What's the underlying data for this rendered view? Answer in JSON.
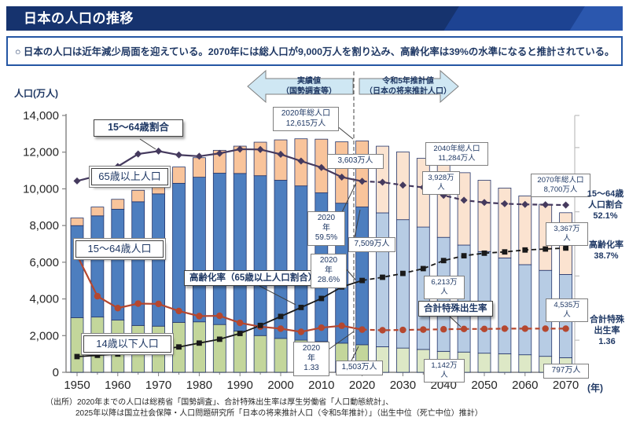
{
  "title_bar": {
    "title": "日本の人口の推移"
  },
  "note": {
    "text": "○ 日本の人口は近年減少局面を迎えている。2070年には総人口が9,000万人を割り込み、高齢化率は39%の水準になると推計されている。"
  },
  "chart_data": {
    "type": "bar",
    "subtype": "stacked-bars-with-lines",
    "ylabel": "人口(万人)",
    "xunit": "(年)",
    "ylim": [
      0,
      14000
    ],
    "ytick_step": 2000,
    "ytick_labels": [
      "0",
      "2,000",
      "4,000",
      "6,000",
      "8,000",
      "10,000",
      "12,000",
      "14,000"
    ],
    "xtick_labels": [
      "1950",
      "1960",
      "1970",
      "1980",
      "1990",
      "2000",
      "2010",
      "2020",
      "2030",
      "2040",
      "2050",
      "2060",
      "2070"
    ],
    "grid": false,
    "legend_position": "in-plot label boxes",
    "projection_from_year": 2025,
    "years": [
      1950,
      1955,
      1960,
      1965,
      1970,
      1975,
      1980,
      1985,
      1990,
      1995,
      2000,
      2005,
      2010,
      2015,
      2020,
      2025,
      2030,
      2035,
      2040,
      2045,
      2050,
      2055,
      2060,
      2065,
      2070
    ],
    "series": [
      {
        "name": "14歳以下人口",
        "role": "bar",
        "unit": "万人",
        "values": [
          2979,
          3012,
          2843,
          2553,
          2515,
          2722,
          2751,
          2603,
          2249,
          2001,
          1847,
          1752,
          1680,
          1589,
          1503,
          1393,
          1321,
          1246,
          1142,
          1103,
          1041,
          1012,
          955,
          870,
          797
        ]
      },
      {
        "name": "15～64歳人口",
        "role": "bar",
        "unit": "万人",
        "values": [
          5017,
          5517,
          6047,
          6744,
          7212,
          7581,
          7883,
          8251,
          8590,
          8716,
          8622,
          8409,
          8103,
          7629,
          7509,
          7298,
          6998,
          6671,
          6213,
          5832,
          5540,
          5219,
          4912,
          4686,
          4535
        ]
      },
      {
        "name": "65歳以上人口",
        "role": "bar",
        "unit": "万人",
        "values": [
          416,
          479,
          540,
          624,
          739,
          887,
          1065,
          1247,
          1489,
          1826,
          2201,
          2567,
          2925,
          3347,
          3603,
          3635,
          3696,
          3747,
          3928,
          3945,
          3888,
          3813,
          3748,
          3603,
          3367
        ]
      },
      {
        "name": "15～64歳割合",
        "role": "line",
        "unit": "%",
        "values": [
          59.6,
          61.2,
          64.1,
          68.0,
          68.9,
          67.7,
          67.3,
          68.2,
          69.5,
          69.4,
          67.9,
          65.8,
          63.8,
          60.8,
          59.5,
          59.2,
          58.3,
          57.6,
          55.1,
          53.6,
          52.9,
          52.5,
          52.3,
          52.2,
          52.1
        ]
      },
      {
        "name": "高齢化率（65歳以上人口割合）",
        "role": "line",
        "unit": "%",
        "values": [
          4.9,
          5.3,
          5.7,
          6.3,
          7.1,
          7.9,
          9.1,
          10.3,
          12.1,
          14.6,
          17.4,
          20.2,
          23.0,
          26.6,
          28.6,
          29.6,
          30.8,
          32.3,
          34.8,
          36.3,
          37.1,
          37.5,
          38.1,
          38.4,
          38.7
        ]
      },
      {
        "name": "合計特殊出生率",
        "role": "line",
        "unit": "",
        "values": [
          3.65,
          2.37,
          2.0,
          2.14,
          2.13,
          1.91,
          1.75,
          1.76,
          1.54,
          1.42,
          1.36,
          1.26,
          1.39,
          1.45,
          1.33,
          1.31,
          1.32,
          1.33,
          1.34,
          1.35,
          1.35,
          1.36,
          1.36,
          1.36,
          1.36
        ]
      }
    ],
    "colors": {
      "bar_child_actual": "#c3d69b",
      "bar_working_actual": "#4d7ebf",
      "bar_elderly_actual": "#f9c49b",
      "bar_child_proj": "#dde8c6",
      "bar_working_proj": "#b7cce4",
      "bar_elderly_proj": "#fbe3d0",
      "bar_outline": "#24356b",
      "line_share": "#453a5e",
      "line_aging": "#1a1a1a",
      "line_tfr": "#b5472f",
      "arrow_fill": "#cfe7f3",
      "axis": "#808080"
    },
    "annotations": {
      "arrow_actual": "実績値\n（国勢調査等）",
      "arrow_proj": "令和5年推計値\n（日本の将来推計人口）",
      "share_label": "15～64歳割合",
      "elderly_label": "65歳以上人口",
      "working_label": "15～64歳人口",
      "child_label": "14歳以下人口",
      "aging_label": "高齢化率（65歳以上人口割合）",
      "tfr_label": "合計特殊出生率",
      "total_2020": "2020年総人口\n12,615万人",
      "total_2040": "2040年総人口\n11,284万人",
      "total_2070": "2070年総人口\n8,700万人",
      "elderly_2020": "3,603万人",
      "elderly_2040": "3,928万\n人",
      "elderly_2070": "3,367万\n人",
      "working_2020": "7,509万人",
      "working_2040": "6,213万\n人",
      "working_2070": "4,535万\n人",
      "child_2020": "1,503万人",
      "child_2040": "1,142万\n人",
      "child_2070": "797万人",
      "share_2020": "2020\n年\n59.5%",
      "aging_2020": "2020\n年\n28.6%",
      "tfr_2020": "2020\n年\n1.33",
      "right_share": "15～64歳\n人口割合\n52.1%",
      "right_aging": "高齢化率\n38.7%",
      "right_tfr": "合計特殊\n出生率\n1.36"
    }
  },
  "source": {
    "line1": "（出所）2020年までの人口は総務省「国勢調査」、合計特殊出生率は厚生労働省「人口動態統計」、",
    "line2": "2025年以降は国立社会保障・人口問題研究所「日本の将来推計人口（令和5年推計）」（出生中位（死亡中位）推計）"
  }
}
